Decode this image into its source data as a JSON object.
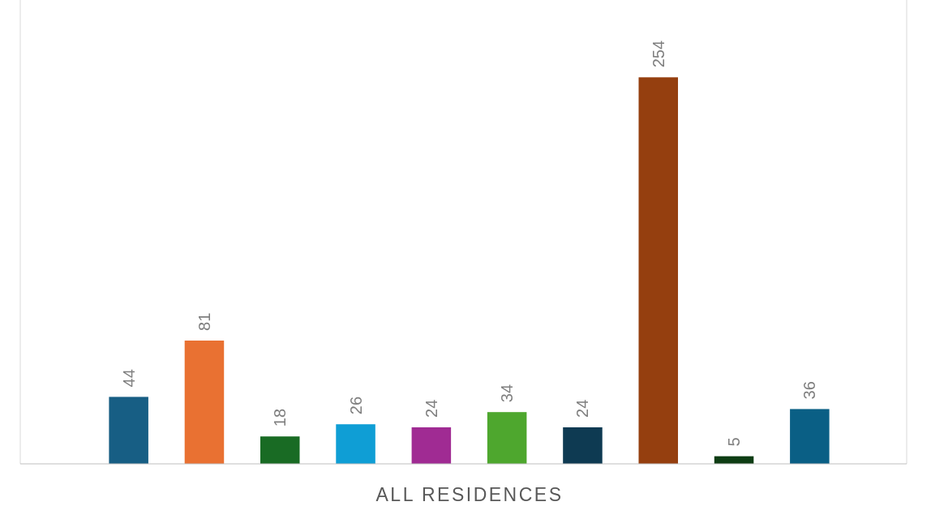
{
  "chart_data": {
    "type": "bar",
    "xlabel": "ALL RESIDENCES",
    "categories": [
      null,
      null,
      null,
      null,
      null,
      null,
      null,
      null,
      null,
      null
    ],
    "values": [
      44,
      81,
      18,
      26,
      24,
      34,
      24,
      254,
      5,
      36
    ],
    "colors": [
      "#175e84",
      "#e97132",
      "#196b24",
      "#0f9ed5",
      "#a02b93",
      "#4ea72e",
      "#0e3a52",
      "#953f0f",
      "#0e3d14",
      "#0a5f85"
    ],
    "data_labels": true
  }
}
